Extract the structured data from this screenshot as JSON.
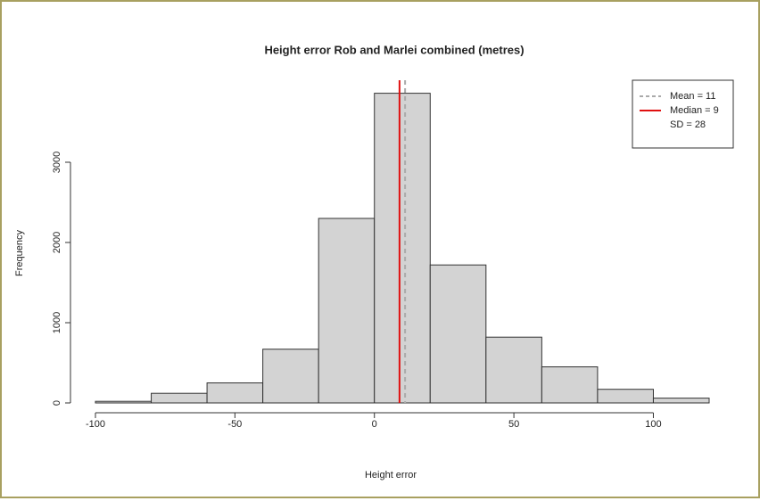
{
  "chart_data": {
    "type": "histogram",
    "title": "Height error Rob and Marlei combined (metres)",
    "x_label": "Height error",
    "y_label": "Frequency",
    "bins": [
      -100,
      -80,
      -60,
      -40,
      -20,
      0,
      20,
      40,
      60,
      80,
      100,
      120
    ],
    "values": [
      20,
      120,
      250,
      670,
      2300,
      3860,
      1720,
      820,
      450,
      170,
      60
    ],
    "color": "#d3d3d3",
    "xlim": [
      -100,
      120
    ],
    "xticks": [
      -100,
      -50,
      0,
      50,
      100
    ],
    "ylim": [
      0,
      3900
    ],
    "yticks": [
      0,
      1000,
      2000,
      3000
    ],
    "vlines": [
      {
        "label": "Mean = 11",
        "value": 11,
        "color": "#aaaaaa",
        "dash": true
      },
      {
        "label": "Median = 9",
        "value": 9,
        "color": "#e01010",
        "dash": false
      }
    ],
    "legend_extra": "SD = 28",
    "legend": "top-right"
  }
}
